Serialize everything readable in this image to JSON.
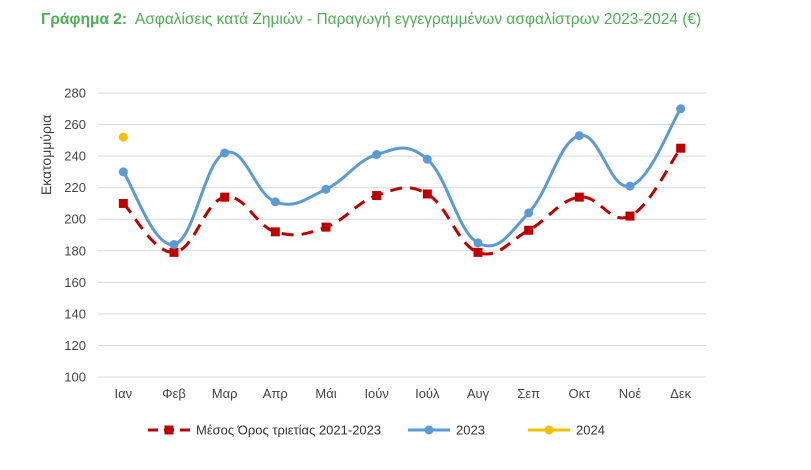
{
  "title": {
    "label": "Γράφημα 2:",
    "text": "Ασφαλίσεις κατά Ζημιών - Παραγωγή εγγεγραμμένων ασφαλίστρων 2023-2024 (€)"
  },
  "chart_data": {
    "type": "line",
    "categories": [
      "Ιαν",
      "Φεβ",
      "Μαρ",
      "Απρ",
      "Μάι",
      "Ιούν",
      "Ιούλ",
      "Αυγ",
      "Σεπ",
      "Οκτ",
      "Νοέ",
      "Δεκ"
    ],
    "ylabel": "Εκατομμύρια",
    "xlabel": "",
    "ylim": [
      100,
      280
    ],
    "yticks": [
      100,
      120,
      140,
      160,
      180,
      200,
      220,
      240,
      260,
      280
    ],
    "grid": true,
    "legend_position": "bottom",
    "series": [
      {
        "name": "Μέσος Όρος τριετίας 2021-2023",
        "color": "#C00000",
        "style": "dashed",
        "marker": "square",
        "values": [
          210,
          179,
          214,
          192,
          195,
          215,
          216,
          179,
          193,
          214,
          202,
          245
        ]
      },
      {
        "name": "2023",
        "color": "#5B9BD5",
        "style": "solid",
        "marker": "circle",
        "values": [
          230,
          184,
          242,
          211,
          219,
          241,
          238,
          185,
          204,
          253,
          221,
          270
        ]
      },
      {
        "name": "2024",
        "color": "#F2C200",
        "style": "solid",
        "marker": "circle",
        "values": [
          252,
          null,
          null,
          null,
          null,
          null,
          null,
          null,
          null,
          null,
          null,
          null
        ]
      }
    ]
  }
}
